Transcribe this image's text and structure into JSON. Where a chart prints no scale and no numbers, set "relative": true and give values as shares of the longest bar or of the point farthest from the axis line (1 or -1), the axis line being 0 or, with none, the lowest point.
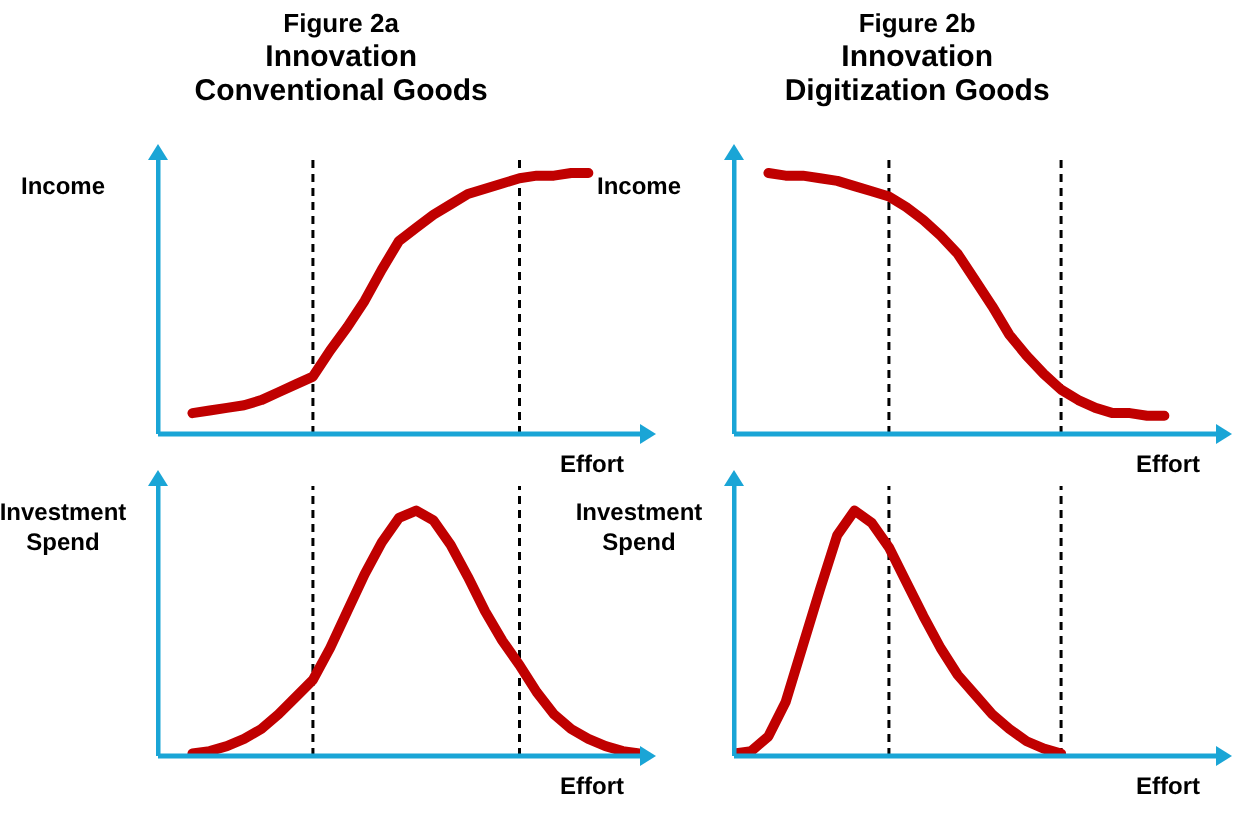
{
  "chart_data": [
    {
      "type": "line",
      "relative": true,
      "title": "Figure 2a",
      "subtitle": "Innovation Conventional Goods",
      "ylabel": "Income",
      "xlabel": "Effort",
      "marker": "none",
      "categories": [
        null,
        null,
        null,
        null,
        null,
        null,
        null,
        null,
        null,
        null,
        null,
        null,
        null,
        null,
        null,
        null,
        null,
        null,
        null,
        null,
        null,
        null,
        null,
        null,
        null,
        null,
        null,
        null,
        null
      ],
      "series": [
        {
          "color": "#c00000",
          "values": [
            null,
            null,
            0.08,
            0.09,
            0.1,
            0.11,
            0.13,
            0.16,
            0.19,
            0.22,
            0.32,
            0.41,
            0.51,
            0.63,
            0.74,
            0.79,
            0.84,
            0.88,
            0.92,
            0.94,
            0.96,
            0.98,
            0.99,
            0.99,
            1.0,
            1.0,
            null,
            null,
            null
          ]
        }
      ]
    },
    {
      "type": "line",
      "relative": true,
      "ylabel": "Investment Spend",
      "xlabel": "Effort",
      "marker": "none",
      "categories": [
        null,
        null,
        null,
        null,
        null,
        null,
        null,
        null,
        null,
        null,
        null,
        null,
        null,
        null,
        null,
        null,
        null,
        null,
        null,
        null,
        null,
        null,
        null,
        null,
        null,
        null,
        null,
        null,
        null
      ],
      "series": [
        {
          "color": "#c00000",
          "values": [
            null,
            null,
            0.01,
            0.02,
            0.04,
            0.07,
            0.11,
            0.17,
            0.24,
            0.31,
            0.44,
            0.59,
            0.74,
            0.87,
            0.97,
            1.0,
            0.96,
            0.86,
            0.73,
            0.59,
            0.47,
            0.37,
            0.26,
            0.17,
            0.11,
            0.07,
            0.04,
            0.02,
            0.01
          ]
        }
      ]
    },
    {
      "type": "line",
      "relative": true,
      "title": "Figure 2b",
      "subtitle": "Innovation Digitization Goods",
      "ylabel": "Income",
      "xlabel": "Effort",
      "marker": "none",
      "categories": [
        null,
        null,
        null,
        null,
        null,
        null,
        null,
        null,
        null,
        null,
        null,
        null,
        null,
        null,
        null,
        null,
        null,
        null,
        null,
        null,
        null,
        null,
        null,
        null,
        null,
        null,
        null,
        null,
        null
      ],
      "series": [
        {
          "color": "#c00000",
          "values": [
            null,
            null,
            1.0,
            0.99,
            0.99,
            0.98,
            0.97,
            0.95,
            0.93,
            0.91,
            0.87,
            0.82,
            0.76,
            0.69,
            0.59,
            0.49,
            0.38,
            0.3,
            0.23,
            0.17,
            0.13,
            0.1,
            0.08,
            0.08,
            0.07,
            0.07,
            null,
            null,
            null
          ]
        }
      ]
    },
    {
      "type": "line",
      "relative": true,
      "ylabel": "Investment Spend",
      "xlabel": "Effort",
      "marker": "none",
      "categories": [
        null,
        null,
        null,
        null,
        null,
        null,
        null,
        null,
        null,
        null,
        null,
        null,
        null,
        null,
        null,
        null,
        null,
        null,
        null,
        null,
        null,
        null,
        null,
        null,
        null,
        null,
        null,
        null,
        null
      ],
      "series": [
        {
          "color": "#c00000",
          "values": [
            0.01,
            0.02,
            0.08,
            0.22,
            0.45,
            0.68,
            0.9,
            1.0,
            0.95,
            0.85,
            0.71,
            0.57,
            0.44,
            0.33,
            0.25,
            0.17,
            0.11,
            0.06,
            0.03,
            0.01,
            null,
            null,
            null,
            null,
            null,
            null,
            null,
            null,
            null
          ]
        }
      ]
    }
  ]
}
